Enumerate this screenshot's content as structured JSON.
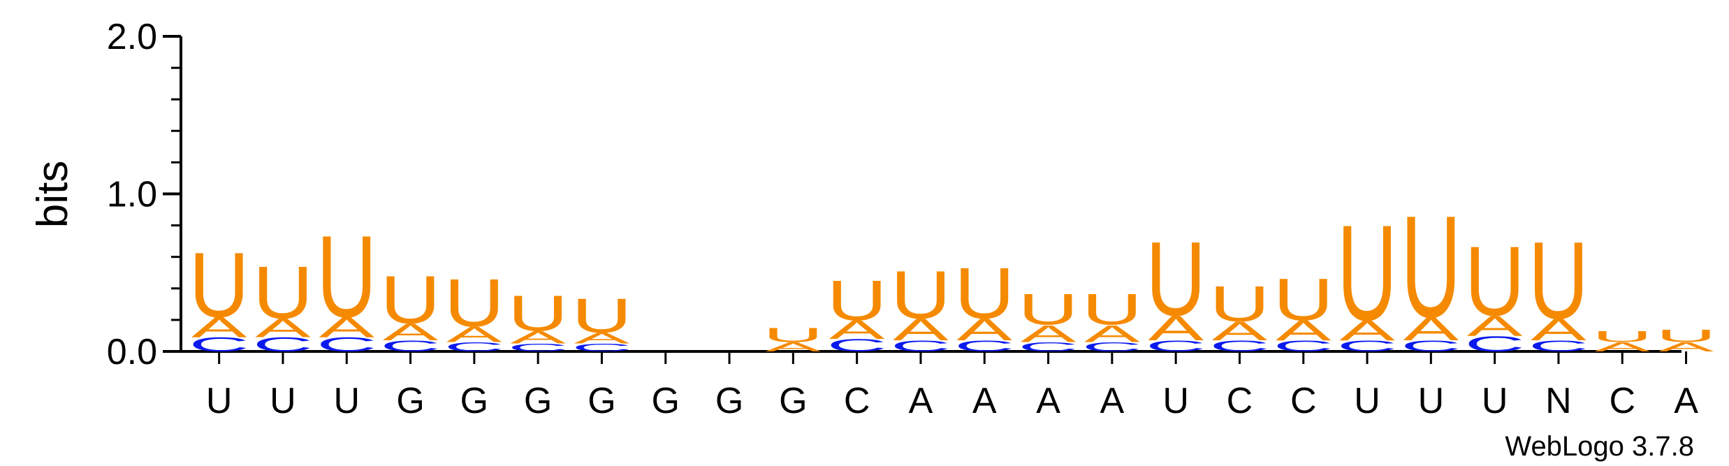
{
  "chart_data": {
    "type": "sequence-logo",
    "ylabel": "bits",
    "ylim": [
      0,
      2.0
    ],
    "yticks": [
      "0.0",
      "1.0",
      "2.0"
    ],
    "credit": "WebLogo 3.7.8",
    "colors": {
      "U": "#f58a00",
      "A": "#f58a00",
      "C": "#0a1aee",
      "G": "#f58a00"
    },
    "positions": [
      {
        "label": "U",
        "stack": [
          {
            "letter": "C",
            "bits": 0.09
          },
          {
            "letter": "A",
            "bits": 0.13
          },
          {
            "letter": "U",
            "bits": 0.42
          }
        ]
      },
      {
        "label": "U",
        "stack": [
          {
            "letter": "C",
            "bits": 0.09
          },
          {
            "letter": "A",
            "bits": 0.12
          },
          {
            "letter": "U",
            "bits": 0.34
          }
        ]
      },
      {
        "label": "U",
        "stack": [
          {
            "letter": "C",
            "bits": 0.09
          },
          {
            "letter": "A",
            "bits": 0.13
          },
          {
            "letter": "U",
            "bits": 0.53
          }
        ]
      },
      {
        "label": "G",
        "stack": [
          {
            "letter": "C",
            "bits": 0.07
          },
          {
            "letter": "A",
            "bits": 0.11
          },
          {
            "letter": "U",
            "bits": 0.31
          }
        ]
      },
      {
        "label": "G",
        "stack": [
          {
            "letter": "C",
            "bits": 0.06
          },
          {
            "letter": "A",
            "bits": 0.1
          },
          {
            "letter": "U",
            "bits": 0.31
          }
        ]
      },
      {
        "label": "G",
        "stack": [
          {
            "letter": "C",
            "bits": 0.05
          },
          {
            "letter": "A",
            "bits": 0.08
          },
          {
            "letter": "U",
            "bits": 0.23
          }
        ]
      },
      {
        "label": "G",
        "stack": [
          {
            "letter": "C",
            "bits": 0.05
          },
          {
            "letter": "A",
            "bits": 0.07
          },
          {
            "letter": "U",
            "bits": 0.22
          }
        ]
      },
      {
        "label": "G",
        "stack": []
      },
      {
        "label": "G",
        "stack": []
      },
      {
        "label": "G",
        "stack": [
          {
            "letter": "A",
            "bits": 0.06
          },
          {
            "letter": "U",
            "bits": 0.09
          }
        ]
      },
      {
        "label": "C",
        "stack": [
          {
            "letter": "C",
            "bits": 0.08
          },
          {
            "letter": "A",
            "bits": 0.12
          },
          {
            "letter": "U",
            "bits": 0.26
          }
        ]
      },
      {
        "label": "A",
        "stack": [
          {
            "letter": "C",
            "bits": 0.07
          },
          {
            "letter": "A",
            "bits": 0.14
          },
          {
            "letter": "U",
            "bits": 0.31
          }
        ]
      },
      {
        "label": "A",
        "stack": [
          {
            "letter": "C",
            "bits": 0.07
          },
          {
            "letter": "A",
            "bits": 0.14
          },
          {
            "letter": "U",
            "bits": 0.33
          }
        ]
      },
      {
        "label": "A",
        "stack": [
          {
            "letter": "C",
            "bits": 0.06
          },
          {
            "letter": "A",
            "bits": 0.11
          },
          {
            "letter": "U",
            "bits": 0.2
          }
        ]
      },
      {
        "label": "A",
        "stack": [
          {
            "letter": "C",
            "bits": 0.06
          },
          {
            "letter": "A",
            "bits": 0.11
          },
          {
            "letter": "U",
            "bits": 0.2
          }
        ]
      },
      {
        "label": "U",
        "stack": [
          {
            "letter": "C",
            "bits": 0.07
          },
          {
            "letter": "A",
            "bits": 0.16
          },
          {
            "letter": "U",
            "bits": 0.48
          }
        ]
      },
      {
        "label": "C",
        "stack": [
          {
            "letter": "C",
            "bits": 0.07
          },
          {
            "letter": "A",
            "bits": 0.12
          },
          {
            "letter": "U",
            "bits": 0.23
          }
        ]
      },
      {
        "label": "C",
        "stack": [
          {
            "letter": "C",
            "bits": 0.07
          },
          {
            "letter": "A",
            "bits": 0.13
          },
          {
            "letter": "U",
            "bits": 0.27
          }
        ]
      },
      {
        "label": "U",
        "stack": [
          {
            "letter": "C",
            "bits": 0.07
          },
          {
            "letter": "A",
            "bits": 0.13
          },
          {
            "letter": "U",
            "bits": 0.62
          }
        ]
      },
      {
        "label": "U",
        "stack": [
          {
            "letter": "C",
            "bits": 0.07
          },
          {
            "letter": "A",
            "bits": 0.15
          },
          {
            "letter": "U",
            "bits": 0.66
          }
        ]
      },
      {
        "label": "U",
        "stack": [
          {
            "letter": "C",
            "bits": 0.1
          },
          {
            "letter": "A",
            "bits": 0.13
          },
          {
            "letter": "U",
            "bits": 0.45
          }
        ]
      },
      {
        "label": "N",
        "stack": [
          {
            "letter": "C",
            "bits": 0.07
          },
          {
            "letter": "A",
            "bits": 0.14
          },
          {
            "letter": "U",
            "bits": 0.5
          }
        ]
      },
      {
        "label": "C",
        "stack": [
          {
            "letter": "A",
            "bits": 0.06
          },
          {
            "letter": "U",
            "bits": 0.07
          }
        ]
      },
      {
        "label": "A",
        "stack": [
          {
            "letter": "A",
            "bits": 0.06
          },
          {
            "letter": "U",
            "bits": 0.08
          }
        ]
      }
    ]
  }
}
